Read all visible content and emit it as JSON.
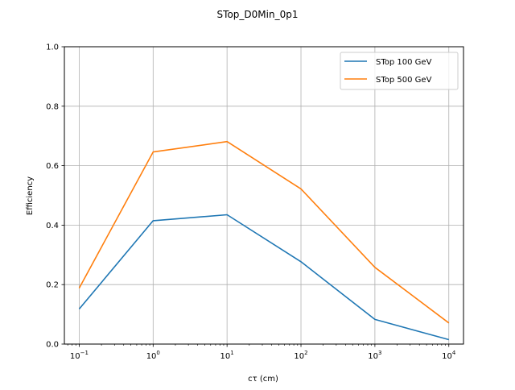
{
  "chart_data": {
    "type": "line",
    "title": "STop_D0Min_0p1",
    "xlabel": "cτ (cm)",
    "ylabel": "Efficiency",
    "xscale": "log",
    "x": [
      0.1,
      1,
      10,
      100,
      1000,
      10000
    ],
    "xlim": [
      0.063,
      15800
    ],
    "ylim": [
      0.0,
      1.0
    ],
    "xticks": [
      {
        "base": "10",
        "exp": "−1",
        "value": 0.1
      },
      {
        "base": "10",
        "exp": "0",
        "value": 1
      },
      {
        "base": "10",
        "exp": "1",
        "value": 10
      },
      {
        "base": "10",
        "exp": "2",
        "value": 100
      },
      {
        "base": "10",
        "exp": "3",
        "value": 1000
      },
      {
        "base": "10",
        "exp": "4",
        "value": 10000
      }
    ],
    "yticks": [
      "0.0",
      "0.2",
      "0.4",
      "0.6",
      "0.8",
      "1.0"
    ],
    "grid": true,
    "legend_position": "top-right",
    "series": [
      {
        "name": "STop 100 GeV",
        "color": "#1f77b4",
        "values": [
          0.118,
          0.415,
          0.435,
          0.277,
          0.083,
          0.015
        ]
      },
      {
        "name": "STop 500 GeV",
        "color": "#ff7f0e",
        "values": [
          0.188,
          0.646,
          0.681,
          0.522,
          0.258,
          0.071
        ]
      }
    ]
  }
}
